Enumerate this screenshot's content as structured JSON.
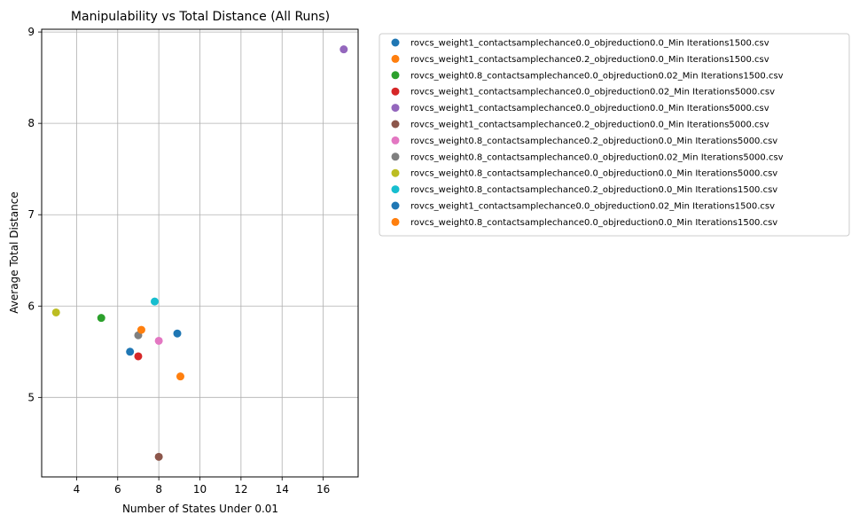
{
  "chart_data": {
    "type": "scatter",
    "title": "Manipulability vs Total Distance (All Runs)",
    "xlabel": "Number of States Under 0.01",
    "ylabel": "Average Total Distance",
    "xlim": [
      2.3,
      17.7
    ],
    "ylim": [
      4.13,
      9.03
    ],
    "xticks": [
      4,
      6,
      8,
      10,
      12,
      14,
      16
    ],
    "yticks": [
      5,
      6,
      7,
      8,
      9
    ],
    "grid": true,
    "legend_position": "outside-right",
    "series": [
      {
        "name": "rovcs_weight1_contactsamplechance0.0_objreduction0.0_Min Iterations1500.csv",
        "color": "#1f77b4",
        "x": [
          8.9
        ],
        "y": [
          5.7
        ]
      },
      {
        "name": "rovcs_weight1_contactsamplechance0.2_objreduction0.0_Min Iterations1500.csv",
        "color": "#ff7f0e",
        "x": [
          9.05
        ],
        "y": [
          5.23
        ]
      },
      {
        "name": "rovcs_weight0.8_contactsamplechance0.0_objreduction0.02_Min Iterations1500.csv",
        "color": "#2ca02c",
        "x": [
          5.2
        ],
        "y": [
          5.87
        ]
      },
      {
        "name": "rovcs_weight1_contactsamplechance0.0_objreduction0.02_Min Iterations5000.csv",
        "color": "#d62728",
        "x": [
          7.0
        ],
        "y": [
          5.45
        ]
      },
      {
        "name": "rovcs_weight1_contactsamplechance0.0_objreduction0.0_Min Iterations5000.csv",
        "color": "#9467bd",
        "x": [
          17.0
        ],
        "y": [
          8.81
        ]
      },
      {
        "name": "rovcs_weight1_contactsamplechance0.2_objreduction0.0_Min Iterations5000.csv",
        "color": "#8c564b",
        "x": [
          8.0
        ],
        "y": [
          4.35
        ]
      },
      {
        "name": "rovcs_weight0.8_contactsamplechance0.2_objreduction0.0_Min Iterations5000.csv",
        "color": "#e377c2",
        "x": [
          8.0
        ],
        "y": [
          5.62
        ]
      },
      {
        "name": "rovcs_weight0.8_contactsamplechance0.0_objreduction0.02_Min Iterations5000.csv",
        "color": "#7f7f7f",
        "x": [
          7.0
        ],
        "y": [
          5.68
        ]
      },
      {
        "name": "rovcs_weight0.8_contactsamplechance0.0_objreduction0.0_Min Iterations5000.csv",
        "color": "#bcbd22",
        "x": [
          3.0
        ],
        "y": [
          5.93
        ]
      },
      {
        "name": "rovcs_weight0.8_contactsamplechance0.2_objreduction0.0_Min Iterations1500.csv",
        "color": "#17becf",
        "x": [
          7.8
        ],
        "y": [
          6.05
        ]
      },
      {
        "name": "rovcs_weight1_contactsamplechance0.0_objreduction0.02_Min Iterations1500.csv",
        "color": "#1f77b4",
        "x": [
          6.6
        ],
        "y": [
          5.5
        ]
      },
      {
        "name": "rovcs_weight0.8_contactsamplechance0.0_objreduction0.0_Min Iterations1500.csv",
        "color": "#ff7f0e",
        "x": [
          7.15
        ],
        "y": [
          5.74
        ]
      }
    ]
  }
}
